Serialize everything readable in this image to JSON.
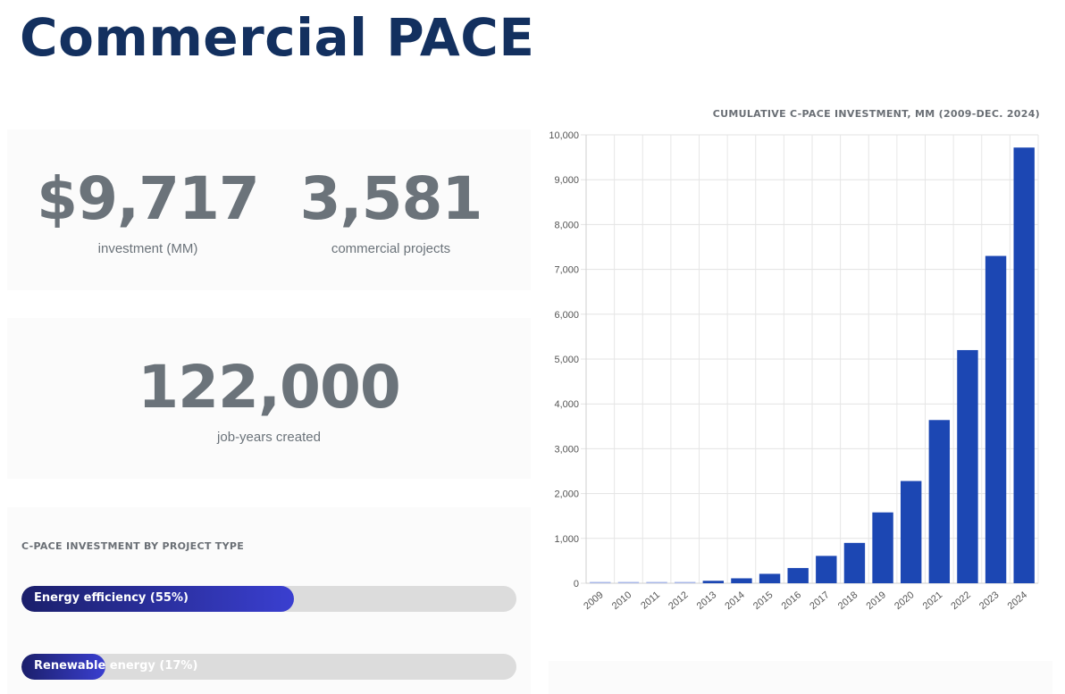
{
  "page": {
    "title": "Commercial PACE"
  },
  "stats": {
    "investment": {
      "value": "$9,717",
      "label": "investment (MM)"
    },
    "projects": {
      "value": "3,581",
      "label": "commercial projects"
    },
    "jobs": {
      "value": "122,000",
      "label": "job-years created"
    }
  },
  "project_types": {
    "heading": "C-PACE INVESTMENT BY PROJECT TYPE",
    "items": [
      {
        "label": "Energy efficiency (55%)",
        "share": 0.55
      },
      {
        "label": "Renewable energy (17%)",
        "share": 0.17
      }
    ]
  },
  "colors": {
    "title": "#13305f",
    "bar": "#1c47b3",
    "bar_early": "#a9b8e8"
  },
  "chart_data": {
    "type": "bar",
    "title": "CUMULATIVE C-PACE INVESTMENT, MM (2009-DEC. 2024)",
    "categories": [
      "2009",
      "2010",
      "2011",
      "2012",
      "2013",
      "2014",
      "2015",
      "2016",
      "2017",
      "2018",
      "2019",
      "2020",
      "2021",
      "2022",
      "2023",
      "2024"
    ],
    "values": [
      5,
      5,
      10,
      25,
      55,
      110,
      210,
      340,
      610,
      900,
      1580,
      2280,
      3640,
      5200,
      7300,
      9717
    ],
    "ylim": [
      0,
      10000
    ],
    "yticks": [
      0,
      1000,
      2000,
      3000,
      4000,
      5000,
      6000,
      7000,
      8000,
      9000,
      10000
    ],
    "ytick_labels": [
      "0",
      "1,000",
      "2,000",
      "3,000",
      "4,000",
      "5,000",
      "6,000",
      "7,000",
      "8,000",
      "9,000",
      "10,000"
    ],
    "xlabel": "",
    "ylabel": "",
    "grid": true,
    "legend": "none"
  }
}
